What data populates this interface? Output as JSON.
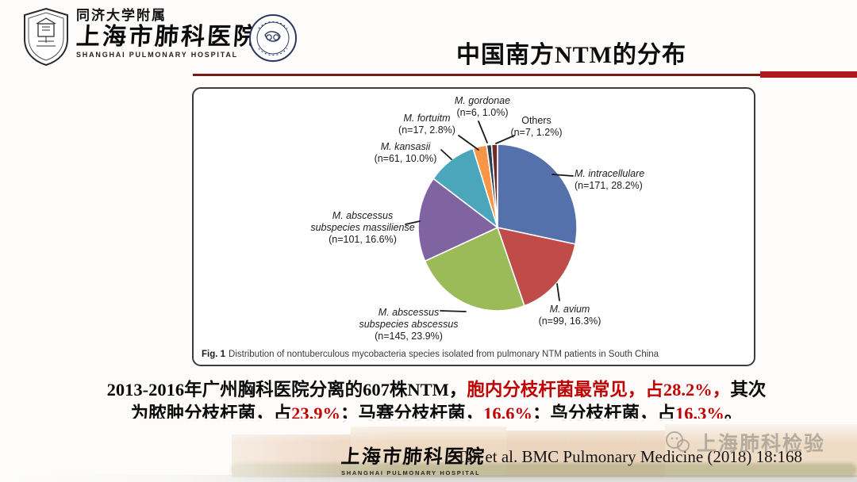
{
  "header": {
    "affiliation": "同济大学附属",
    "hospital_name_cn": "上海市肺科医院",
    "hospital_name_en": "SHANGHAI PULMONARY HOSPITAL",
    "title": "中国南方NTM的分布"
  },
  "figure": {
    "caption_label": "Fig. 1",
    "caption_text": "Distribution of nontuberculous mycobacteria species isolated from pulmonary NTM patients in South China"
  },
  "chart_data": {
    "type": "pie",
    "title": "Distribution of nontuberculous mycobacteria species isolated from pulmonary NTM patients in South China",
    "total_n": 607,
    "legend_position": "callout-labels",
    "slices": [
      {
        "name": "M. intracellulare",
        "n": 171,
        "pct": 28.2,
        "color": "#5571ac",
        "label_lines": [
          "M. intracellulare",
          "(n=171, 28.2%)"
        ]
      },
      {
        "name": "M. avium",
        "n": 99,
        "pct": 16.3,
        "color": "#bf4c49",
        "label_lines": [
          "M. avium",
          "(n=99, 16.3%)"
        ]
      },
      {
        "name": "M. abscessus subspecies abscessus",
        "n": 145,
        "pct": 23.9,
        "color": "#9bbb59",
        "label_lines": [
          "M. abscessus",
          "subspecies abscessus",
          "(n=145, 23.9%)"
        ]
      },
      {
        "name": "M. abscessus subspecies massiliense",
        "n": 101,
        "pct": 16.6,
        "color": "#8064a2",
        "label_lines": [
          "M. abscessus",
          "subspecies massiliense",
          "(n=101, 16.6%)"
        ]
      },
      {
        "name": "M. kansasii",
        "n": 61,
        "pct": 10.0,
        "color": "#4ba5bb",
        "label_lines": [
          "M. kansasii",
          "(n=61, 10.0%)"
        ]
      },
      {
        "name": "M. fortuitm",
        "n": 17,
        "pct": 2.8,
        "color": "#f79646",
        "label_lines": [
          "M. fortuitm",
          "(n=17, 2.8%)"
        ]
      },
      {
        "name": "M. gordonae",
        "n": 6,
        "pct": 1.0,
        "color": "#2b3a55",
        "label_lines": [
          "M. gordonae",
          "(n=6, 1.0%)"
        ]
      },
      {
        "name": "Others",
        "n": 7,
        "pct": 1.2,
        "color": "#6e2c2a",
        "label_lines": [
          "Others",
          "(n=7, 1.2%)"
        ]
      }
    ]
  },
  "body_text": {
    "line1_a": "2013-2016年广州胸科医院分离的607株NTM，",
    "line1_b": "胞内分枝杆菌最常见，占28.2%，",
    "line1_c": "其次",
    "line2_seg1": "为脓肿分枝杆菌，占",
    "line2_red1": "23.9%",
    "line2_seg2": "；马赛分枝杆菌，",
    "line2_red2": "16.6%",
    "line2_seg3": "；鸟分枝杆菌，占",
    "line2_red3": "16.3%",
    "line2_seg4": "。"
  },
  "footer": {
    "hospital_name_cn": "上海市肺科医院",
    "hospital_name_en": "SHANGHAI PULMONARY HOSPITAL",
    "citation": "Tan et al. BMC Pulmonary Medicine (2018) 18:168",
    "watermark": "上海肺科检验"
  },
  "colors": {
    "accent_red_thick": "#b2191f",
    "accent_red_thin": "#771914",
    "highlight_red": "#c00404"
  }
}
